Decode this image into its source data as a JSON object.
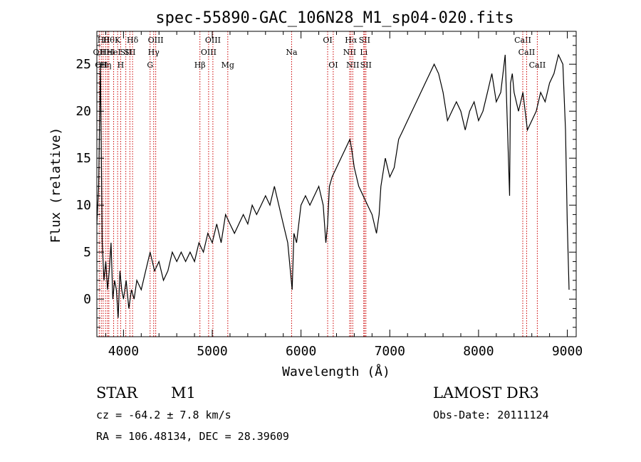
{
  "chart_data": {
    "type": "line",
    "title": "spec-55890-GAC_106N28_M1_sp04-020.fits",
    "xlabel": "Wavelength (Å)",
    "ylabel": "Flux (relative)",
    "xlim": [
      3700,
      9100
    ],
    "ylim": [
      -4,
      28.5
    ],
    "xticks": [
      4000,
      5000,
      6000,
      7000,
      8000,
      9000
    ],
    "yticks": [
      0,
      5,
      10,
      15,
      20,
      25
    ],
    "series": [
      {
        "name": "flux",
        "x": [
          3700,
          3720,
          3740,
          3760,
          3780,
          3800,
          3820,
          3840,
          3860,
          3880,
          3900,
          3920,
          3940,
          3960,
          3980,
          4000,
          4030,
          4060,
          4090,
          4120,
          4150,
          4200,
          4250,
          4300,
          4350,
          4400,
          4450,
          4500,
          4550,
          4600,
          4650,
          4700,
          4750,
          4800,
          4850,
          4900,
          4950,
          5000,
          5050,
          5100,
          5150,
          5200,
          5250,
          5300,
          5350,
          5400,
          5450,
          5500,
          5550,
          5600,
          5650,
          5700,
          5750,
          5800,
          5850,
          5880,
          5900,
          5920,
          5950,
          6000,
          6050,
          6100,
          6150,
          6200,
          6250,
          6280,
          6300,
          6320,
          6350,
          6400,
          6450,
          6500,
          6550,
          6570,
          6600,
          6650,
          6700,
          6750,
          6800,
          6850,
          6880,
          6900,
          6950,
          7000,
          7050,
          7100,
          7150,
          7200,
          7250,
          7300,
          7350,
          7400,
          7450,
          7500,
          7550,
          7600,
          7650,
          7700,
          7750,
          7800,
          7850,
          7900,
          7950,
          8000,
          8050,
          8100,
          8150,
          8200,
          8250,
          8300,
          8350,
          8360,
          8380,
          8400,
          8450,
          8500,
          8550,
          8600,
          8650,
          8700,
          8750,
          8800,
          8850,
          8900,
          8950,
          8980,
          9000,
          9020
        ],
        "y": [
          8,
          12,
          25,
          6,
          2,
          4,
          1,
          3,
          6,
          0,
          2,
          1,
          -2,
          3,
          1,
          0,
          2,
          -1,
          1,
          0,
          2,
          1,
          3,
          5,
          3,
          4,
          2,
          3,
          5,
          4,
          5,
          4,
          5,
          4,
          6,
          5,
          7,
          6,
          8,
          6,
          9,
          8,
          7,
          8,
          9,
          8,
          10,
          9,
          10,
          11,
          10,
          12,
          10,
          8,
          6,
          3,
          1,
          7,
          6,
          10,
          11,
          10,
          11,
          12,
          10,
          6,
          8,
          12,
          13,
          14,
          15,
          16,
          17,
          16,
          14,
          12,
          11,
          10,
          9,
          7,
          9,
          12,
          15,
          13,
          14,
          17,
          18,
          19,
          20,
          21,
          22,
          23,
          24,
          25,
          24,
          22,
          19,
          20,
          21,
          20,
          18,
          20,
          21,
          19,
          20,
          22,
          24,
          21,
          22,
          26,
          11,
          23,
          24,
          22,
          20,
          22,
          18,
          19,
          20,
          22,
          21,
          23,
          24,
          26,
          25,
          18,
          8,
          1
        ]
      }
    ],
    "line_markers": [
      {
        "x": 3727,
        "row": 2,
        "text": "OII"
      },
      {
        "x": 3750,
        "row": 3,
        "text": "OII"
      },
      {
        "x": 3771,
        "row": 1,
        "text": "Hθ"
      },
      {
        "x": 3798,
        "row": 3,
        "text": "Hη"
      },
      {
        "x": 3820,
        "row": 2,
        "text": "HeI"
      },
      {
        "x": 3835,
        "row": 1,
        "text": "Hθ"
      },
      {
        "x": 3889,
        "row": 2,
        "text": "HeI"
      },
      {
        "x": 3934,
        "row": 1,
        "text": "K"
      },
      {
        "x": 3968,
        "row": 3,
        "text": "H"
      },
      {
        "x": 4026,
        "row": 2,
        "text": "SII"
      },
      {
        "x": 4072,
        "row": 2,
        "text": "SII"
      },
      {
        "x": 4102,
        "row": 1,
        "text": "Hδ"
      },
      {
        "x": 4300,
        "row": 3,
        "text": "G"
      },
      {
        "x": 4340,
        "row": 2,
        "text": "Hγ"
      },
      {
        "x": 4363,
        "row": 1,
        "text": "OIII"
      },
      {
        "x": 4861,
        "row": 3,
        "text": "Hβ"
      },
      {
        "x": 4959,
        "row": 2,
        "text": "OIII"
      },
      {
        "x": 5007,
        "row": 1,
        "text": "OIII"
      },
      {
        "x": 5175,
        "row": 3,
        "text": "Mg"
      },
      {
        "x": 5894,
        "row": 2,
        "text": "Na"
      },
      {
        "x": 6300,
        "row": 1,
        "text": "OI"
      },
      {
        "x": 6363,
        "row": 3,
        "text": "OI"
      },
      {
        "x": 6548,
        "row": 2,
        "text": "NII"
      },
      {
        "x": 6563,
        "row": 1,
        "text": "Hα"
      },
      {
        "x": 6583,
        "row": 3,
        "text": "NII"
      },
      {
        "x": 6707,
        "row": 2,
        "text": "Li"
      },
      {
        "x": 6716,
        "row": 1,
        "text": "SII"
      },
      {
        "x": 6731,
        "row": 3,
        "text": "SII"
      },
      {
        "x": 8498,
        "row": 1,
        "text": "CaII"
      },
      {
        "x": 8542,
        "row": 2,
        "text": "CaII"
      },
      {
        "x": 8662,
        "row": 3,
        "text": "CaII"
      }
    ]
  },
  "info": {
    "object_class": "STAR",
    "subclass": "M1",
    "survey": "LAMOST DR3",
    "redshift": "cz = -64.2 ± 7.8 km/s",
    "obs_date": "Obs-Date: 20111124",
    "coords": "RA = 106.48134, DEC =  28.39609"
  },
  "colors": {
    "axis": "#000000",
    "spectrum": "#000000",
    "line_marker": "#cc0000"
  }
}
